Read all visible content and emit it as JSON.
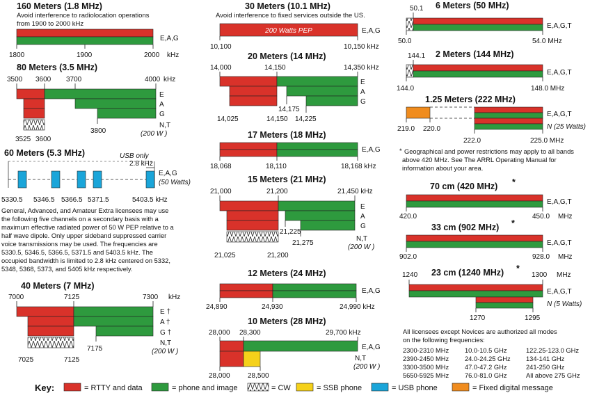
{
  "colors": {
    "rtty": "#d9322a",
    "phone": "#2e9a3e",
    "ssb": "#f5d11a",
    "usb": "#1aa5d9",
    "fixed": "#f08c1e"
  },
  "bands": {
    "m160": {
      "title": "160 Meters (1.8 MHz)",
      "note": [
        "Avoid interference to radiolocation operations",
        "from 1900 to 2000 kHz"
      ],
      "ticks": [
        "1800",
        "1900",
        "2000"
      ],
      "unit": "kHz",
      "classes": [
        "E,A,G"
      ]
    },
    "m80": {
      "title": "80 Meters (3.5 MHz)",
      "top_ticks": [
        "3500",
        "3600",
        "3700",
        "4000"
      ],
      "unit": "kHz",
      "bottom_ticks": [
        "3525",
        "3600",
        "3800"
      ],
      "classes": [
        "E",
        "A",
        "G",
        "N,T",
        "(200 W )"
      ]
    },
    "m60": {
      "title": "60 Meters (5.3 MHz)",
      "usb": "USB only",
      "bw": "2.8 kHz",
      "classes": [
        "E,A,G",
        "(50 Watts)"
      ],
      "ticks": [
        "5330.5",
        "5346.5",
        "5366.5",
        "5371.5",
        "5403.5 kHz"
      ],
      "note": [
        "General, Advanced, and Amateur Extra licensees may use",
        "the following five channels on a secondary basis with a",
        "maximum effective radiated power of 50 W PEP relative to a",
        "half wave dipole. Only upper sideband suppressed carrier",
        "voice transmissions may be used. The frequencies are",
        "5330.5, 5346.5, 5366.5, 5371.5 and 5403.5 kHz. The",
        "occupied bandwidth is limited to 2.8 kHz centered on 5332,",
        "5348, 5368, 5373, and 5405 kHz respectively."
      ]
    },
    "m40": {
      "title": "40 Meters (7 MHz)",
      "top_ticks": [
        "7000",
        "7125",
        "7300"
      ],
      "unit": "kHz",
      "bottom_ticks": [
        "7025",
        "7125",
        "7175"
      ],
      "classes": [
        "E †",
        "A †",
        "G †",
        "N,T",
        "(200 W )"
      ]
    },
    "m30": {
      "title": "30 Meters (10.1 MHz)",
      "note": "Avoid interference to fixed services outside the US.",
      "bar_text": "200 Watts PEP",
      "ticks": [
        "10,100",
        "10,150 kHz"
      ],
      "classes": [
        "E,A,G"
      ]
    },
    "m20": {
      "title": "20 Meters (14 MHz)",
      "top_ticks": [
        "14,000",
        "14,150",
        "14,350 kHz"
      ],
      "bottom_ticks": [
        "14,025",
        "14,150",
        "14,175",
        "14,225"
      ],
      "classes": [
        "E",
        "A",
        "G"
      ]
    },
    "m17": {
      "title": "17 Meters (18 MHz)",
      "ticks": [
        "18,068",
        "18,110",
        "18,168 kHz"
      ],
      "classes": [
        "E,A,G"
      ]
    },
    "m15": {
      "title": "15 Meters (21 MHz)",
      "top_ticks": [
        "21,000",
        "21,200",
        "21,450 kHz"
      ],
      "bottom_ticks": [
        "21,025",
        "21,200",
        "21,225",
        "21,275"
      ],
      "classes": [
        "E",
        "A",
        "G",
        "N,T",
        "(200 W )"
      ]
    },
    "m12": {
      "title": "12 Meters (24 MHz)",
      "ticks": [
        "24,890",
        "24,930",
        "24,990 kHz"
      ],
      "classes": [
        "E,A,G"
      ]
    },
    "m10": {
      "title": "10 Meters (28 MHz)",
      "top_ticks": [
        "28,000",
        "28,300",
        "29,700 kHz"
      ],
      "bottom_ticks": [
        "28,000",
        "28,500"
      ],
      "classes": [
        "E,A,G",
        "N,T",
        "(200 W )"
      ]
    },
    "m6": {
      "title": "6 Meters (50 MHz)",
      "ticks": [
        "50.1",
        "50.0",
        "54.0 MHz"
      ],
      "classes": [
        "E,A,G,T"
      ]
    },
    "m2": {
      "title": "2 Meters (144 MHz)",
      "ticks": [
        "144.1",
        "144.0",
        "148.0 MHz"
      ],
      "classes": [
        "E,A,G,T"
      ]
    },
    "m125": {
      "title": "1.25 Meters (222 MHz)",
      "ticks": [
        "219.0",
        "220.0",
        "222.0",
        "225.0 MHz"
      ],
      "classes": [
        "E,A,G,T",
        "N (25 Watts)"
      ]
    },
    "footnote": [
      "Geographical and power restrictions may apply to all bands",
      "above 420 MHz. See The ARRL Operating Manual for",
      "information about your area."
    ],
    "cm70": {
      "title": "70 cm (420 MHz)",
      "ticks": [
        "420.0",
        "450.0",
        "MHz"
      ],
      "classes": [
        "E,A,G,T"
      ]
    },
    "cm33": {
      "title": "33 cm (902 MHz)",
      "ticks": [
        "902.0",
        "928.0",
        "MHz"
      ],
      "classes": [
        "E,A,G,T"
      ]
    },
    "cm23": {
      "title": "23 cm (1240 MHz)",
      "top_ticks": [
        "1240",
        "1300",
        "MHz"
      ],
      "bottom_ticks": [
        "1270",
        "1295"
      ],
      "classes": [
        "E,A,G,T",
        "N (5 Watts)"
      ]
    },
    "microwave": {
      "intro": [
        "All licensees except Novices are authorized all modes",
        "on the following frequencies:"
      ],
      "col1": [
        "2300-2310 MHz",
        "2390-2450 MHz",
        "3300-3500 MHz",
        "5650-5925 MHz"
      ],
      "col2": [
        "10.0-10.5 GHz",
        "24.0-24.25 GHz",
        "47.0-47.2 GHz",
        "76.0-81.0 GHz"
      ],
      "col3": [
        "122.25-123.0 GHz",
        "134-141 GHz",
        "241-250 GHz",
        "All above 275 GHz"
      ]
    }
  },
  "key": {
    "label": "Key:",
    "items": [
      "= RTTY and data",
      "= phone and image",
      "= CW",
      "= SSB phone",
      "= USB phone",
      "= Fixed digital message"
    ]
  }
}
